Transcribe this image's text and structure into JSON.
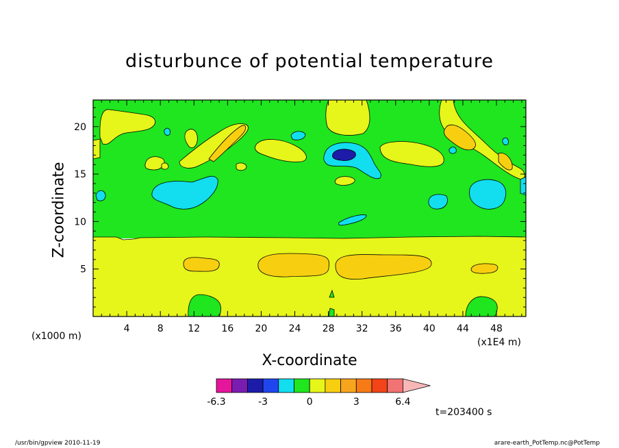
{
  "chart_data": {
    "type": "heatmap",
    "title": "disturbunce of potential temperature",
    "xlabel": "X-coordinate",
    "ylabel": "Z-coordinate",
    "x_unit_label": "(x1000 m)",
    "x_scale_label": "(x1E4 m)",
    "xlim": [
      0,
      51.5
    ],
    "ylim": [
      0,
      22.8
    ],
    "x_ticks": [
      4,
      8,
      12,
      16,
      20,
      24,
      28,
      32,
      36,
      40,
      44,
      48
    ],
    "y_ticks": [
      5,
      10,
      15,
      20
    ],
    "colorbar": {
      "colors": [
        "#e5169b",
        "#7a1cb0",
        "#1c1ca8",
        "#1f46ee",
        "#12def0",
        "#1fe61f",
        "#e6f51a",
        "#f8cf10",
        "#f7a51d",
        "#f77a16",
        "#f24418",
        "#f27373"
      ],
      "extend_color": "#f7b7b7",
      "tick_labels": [
        "-6.3",
        "-3",
        "0",
        "3",
        "6.4"
      ]
    },
    "regions": [
      {
        "level": "0 to 1 (background, lower layer)",
        "z_range": [
          0,
          8.5
        ]
      },
      {
        "level": "-1 to 0 (background, upper layer)",
        "z_range": [
          8.5,
          22.8
        ]
      }
    ],
    "annotation": "t=203400 s"
  },
  "footer": {
    "left": "/usr/bin/gpview   2010-11-19",
    "right": "arare-earth_PotTemp.nc@PotTemp"
  }
}
